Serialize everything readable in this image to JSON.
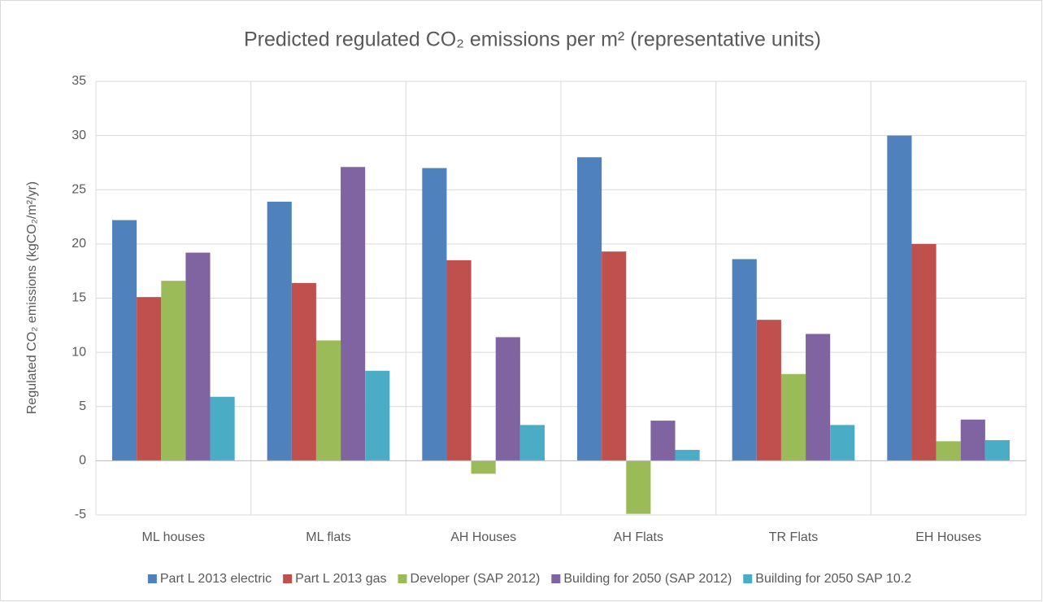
{
  "chart_data": {
    "type": "bar",
    "title": "Predicted regulated CO₂ emissions per m² (representative units)",
    "y_label": "Regulated CO₂ emissions (kgCO₂/m²/yr)",
    "categories": [
      "ML houses",
      "ML flats",
      "AH Houses",
      "AH Flats",
      "TR Flats",
      "EH Houses"
    ],
    "series": [
      {
        "name": "Part L 2013 electric",
        "color": "#4f81bd",
        "values": [
          22.2,
          23.9,
          27.0,
          28.0,
          18.6,
          30.0
        ]
      },
      {
        "name": "Part L 2013 gas",
        "color": "#c0504d",
        "values": [
          15.1,
          16.4,
          18.5,
          19.3,
          13.0,
          20.0
        ]
      },
      {
        "name": "Developer (SAP 2012)",
        "color": "#9bbb59",
        "values": [
          16.6,
          11.1,
          -1.2,
          -4.9,
          8.0,
          1.8
        ]
      },
      {
        "name": "Building for 2050 (SAP 2012)",
        "color": "#8064a2",
        "values": [
          19.2,
          27.1,
          11.4,
          3.7,
          11.7,
          3.8
        ]
      },
      {
        "name": "Building for 2050 SAP 10.2",
        "color": "#4bacc6",
        "values": [
          5.9,
          8.3,
          3.3,
          1.0,
          3.3,
          1.9
        ]
      }
    ],
    "ylim": [
      -5,
      35
    ],
    "yticks": [
      -5,
      0,
      5,
      10,
      15,
      20,
      25,
      30,
      35
    ],
    "grid": true,
    "legend": "bottom"
  }
}
